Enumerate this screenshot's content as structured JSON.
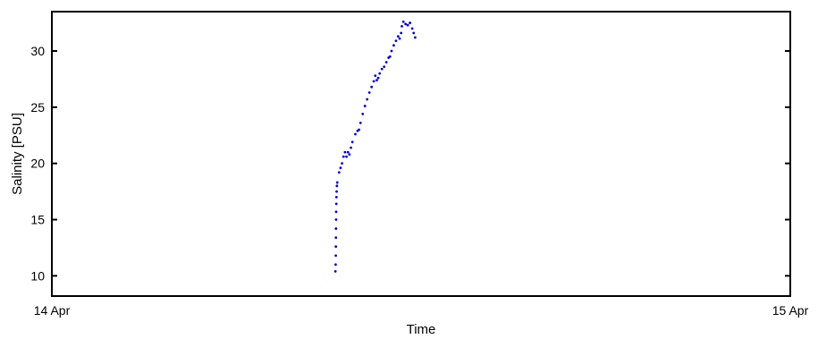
{
  "chart_data": {
    "type": "scatter",
    "title": "",
    "xlabel": "Time",
    "ylabel": "Salinity [PSU]",
    "x_unit": "days from 14 Apr",
    "xlim": [
      0,
      1
    ],
    "ylim": [
      8.2,
      33.5
    ],
    "x_ticks": [
      {
        "value": 0,
        "label": "14 Apr"
      },
      {
        "value": 1,
        "label": "15 Apr"
      }
    ],
    "y_ticks": [
      10,
      15,
      20,
      25,
      30
    ],
    "grid": false,
    "legend": "none",
    "colors": {
      "series": "#0000dd",
      "axes": "#000000"
    },
    "series": [
      {
        "values": [
          [
            0.384,
            10.4
          ],
          [
            0.3843,
            11.0
          ],
          [
            0.3845,
            11.8
          ],
          [
            0.3846,
            12.6
          ],
          [
            0.3847,
            13.4
          ],
          [
            0.3848,
            14.2
          ],
          [
            0.3849,
            15.0
          ],
          [
            0.385,
            15.7
          ],
          [
            0.3852,
            16.4
          ],
          [
            0.3854,
            17.0
          ],
          [
            0.3857,
            17.5
          ],
          [
            0.386,
            18.0
          ],
          [
            0.3865,
            18.3
          ],
          [
            0.389,
            19.2
          ],
          [
            0.391,
            19.6
          ],
          [
            0.393,
            20.0
          ],
          [
            0.395,
            20.6
          ],
          [
            0.397,
            21.0
          ],
          [
            0.399,
            20.6
          ],
          [
            0.401,
            21.0
          ],
          [
            0.403,
            20.8
          ],
          [
            0.405,
            21.4
          ],
          [
            0.407,
            21.9
          ],
          [
            0.411,
            22.6
          ],
          [
            0.414,
            22.9
          ],
          [
            0.416,
            23.0
          ],
          [
            0.418,
            23.6
          ],
          [
            0.421,
            24.4
          ],
          [
            0.424,
            25.1
          ],
          [
            0.427,
            25.7
          ],
          [
            0.43,
            26.3
          ],
          [
            0.433,
            26.8
          ],
          [
            0.436,
            27.3
          ],
          [
            0.438,
            27.8
          ],
          [
            0.44,
            27.4
          ],
          [
            0.442,
            27.6
          ],
          [
            0.444,
            28.0
          ],
          [
            0.447,
            28.4
          ],
          [
            0.45,
            28.6
          ],
          [
            0.453,
            29.0
          ],
          [
            0.456,
            29.4
          ],
          [
            0.458,
            29.5
          ],
          [
            0.46,
            30.0
          ],
          [
            0.463,
            30.5
          ],
          [
            0.466,
            30.9
          ],
          [
            0.469,
            31.3
          ],
          [
            0.471,
            31.1
          ],
          [
            0.473,
            31.6
          ],
          [
            0.474,
            32.2
          ],
          [
            0.476,
            32.6
          ],
          [
            0.479,
            32.4
          ],
          [
            0.482,
            32.3
          ],
          [
            0.485,
            32.5
          ],
          [
            0.488,
            32.0
          ],
          [
            0.49,
            31.6
          ],
          [
            0.492,
            31.2
          ]
        ]
      }
    ]
  }
}
